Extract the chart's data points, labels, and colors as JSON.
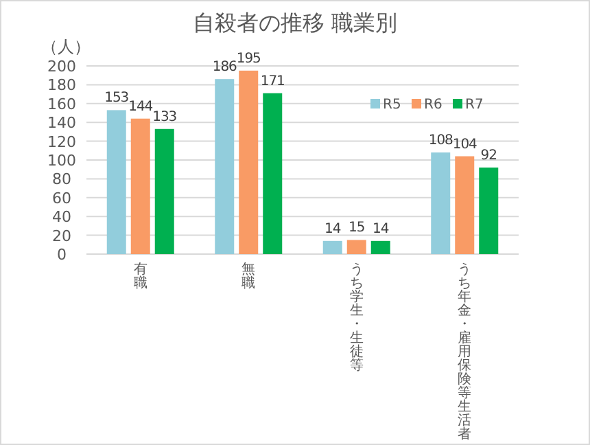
{
  "chart_data": {
    "type": "bar",
    "title": "自殺者の推移  職業別",
    "ylabel": "（人）",
    "categories": [
      "有職",
      "無職",
      "うち学生・生徒等",
      "うち年金・雇用保険等生活者"
    ],
    "series": [
      {
        "name": "R5",
        "color": "#92cddc",
        "values": [
          153,
          186,
          14,
          108
        ]
      },
      {
        "name": "R6",
        "color": "#f99b65",
        "values": [
          144,
          195,
          15,
          104
        ]
      },
      {
        "name": "R7",
        "color": "#00b050",
        "values": [
          133,
          171,
          14,
          92
        ]
      }
    ],
    "ylim": [
      0,
      200
    ],
    "yticks": [
      0,
      20,
      40,
      60,
      80,
      100,
      120,
      140,
      160,
      180,
      200
    ],
    "grid": "y",
    "legend": "top right",
    "data_labels": true
  }
}
